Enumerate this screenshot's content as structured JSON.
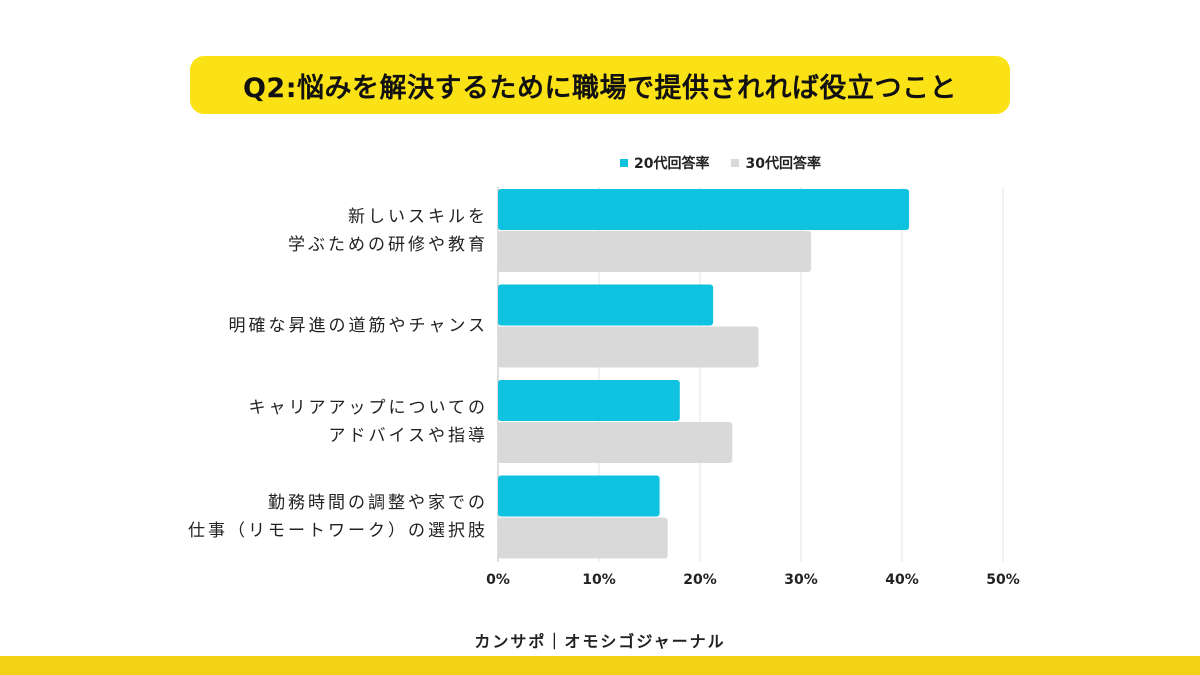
{
  "title": "Q2:悩みを解決するために職場で提供されれば役立つこと",
  "footer": "カンサポ｜オモシゴジャーナル",
  "colors": {
    "title_bg": "#fbe216",
    "series_20": "#0fc2e0",
    "series_30": "#d9d9d9",
    "footer_bar": "#f3d117",
    "grid": "#e3e3e3"
  },
  "chart_data": {
    "type": "bar",
    "orientation": "horizontal",
    "categories": [
      [
        "新しいスキルを",
        "学ぶための研修や教育"
      ],
      [
        "明確な昇進の道筋やチャンス"
      ],
      [
        "キャリアアップについての",
        "アドバイスや指導"
      ],
      [
        "勤務時間の調整や家での",
        "仕事（リモートワーク）の選択肢"
      ]
    ],
    "series": [
      {
        "name": "20代回答率",
        "values": [
          40.7,
          21.3,
          18.0,
          16.0
        ]
      },
      {
        "name": "30代回答率",
        "values": [
          31.0,
          25.8,
          23.2,
          16.8
        ]
      }
    ],
    "xlim": [
      0,
      50
    ],
    "x_ticks": [
      "0%",
      "10%",
      "20%",
      "30%",
      "40%",
      "50%"
    ],
    "legend_position": "top-right",
    "grid": true
  }
}
